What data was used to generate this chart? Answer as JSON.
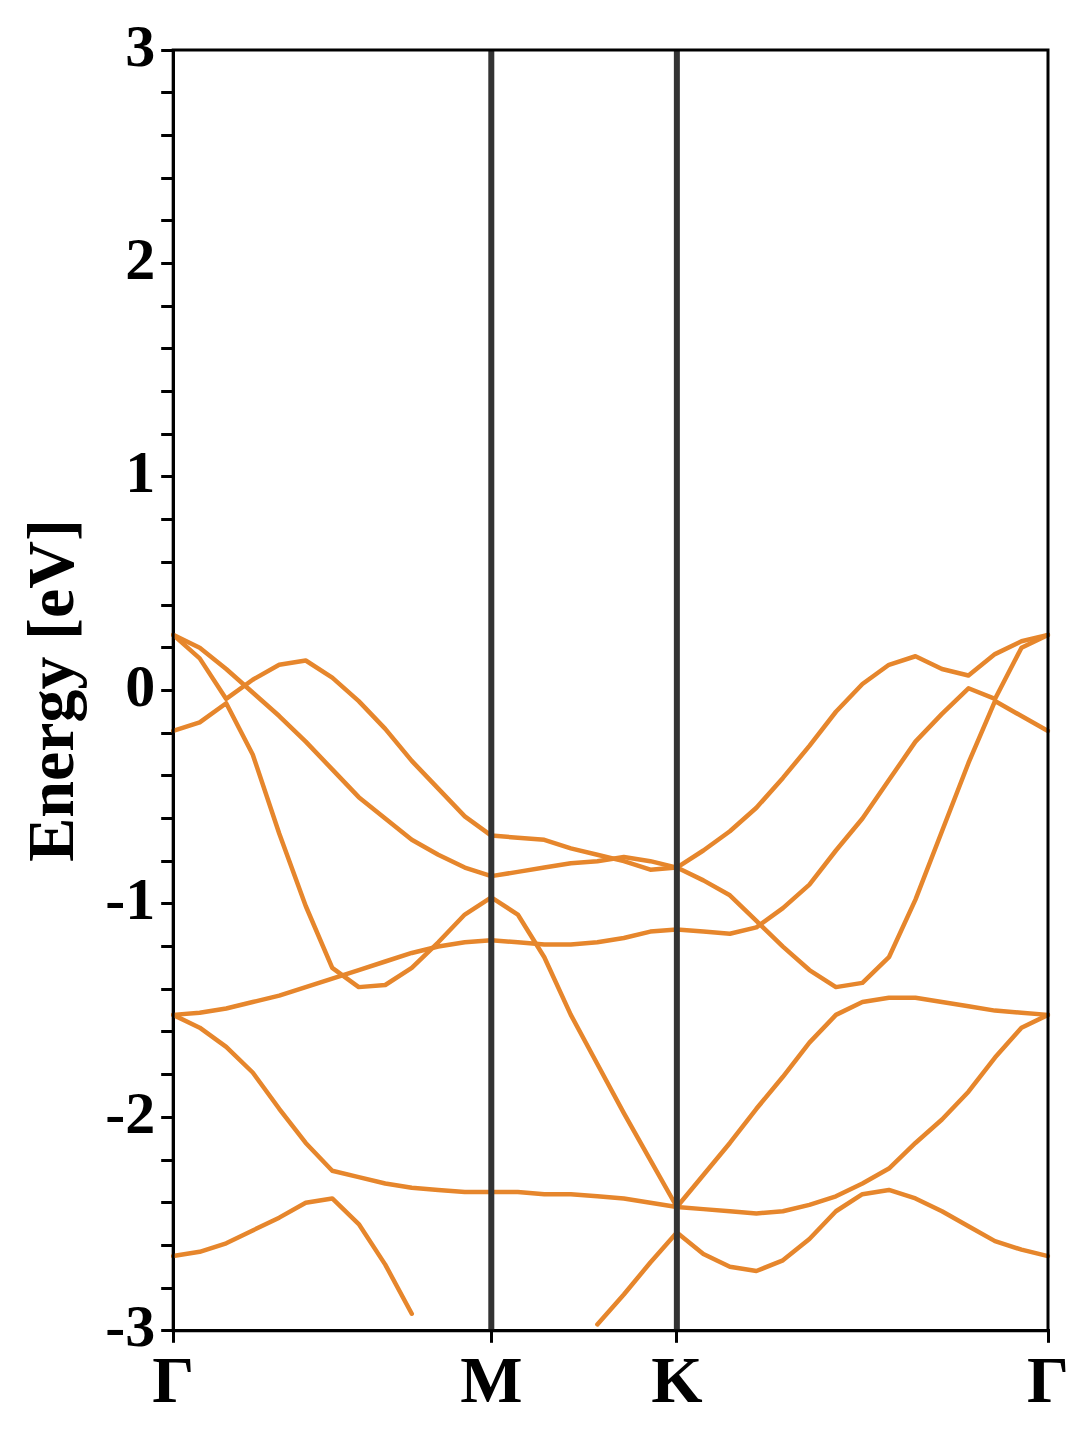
{
  "chart_data": {
    "type": "line",
    "ylabel": "Energy [eV]",
    "categories": [
      "Γ",
      null,
      null,
      null,
      null,
      null,
      null,
      null,
      null,
      null,
      null,
      null,
      "M",
      null,
      null,
      null,
      null,
      null,
      null,
      "K",
      null,
      null,
      null,
      null,
      null,
      null,
      null,
      null,
      null,
      null,
      null,
      null,
      null,
      "Γ"
    ],
    "ylim": [
      -3,
      3
    ],
    "yticks": [
      -3,
      {
        "value": -2.8,
        "label": null
      },
      {
        "value": -2.6,
        "label": null
      },
      {
        "value": -2.4,
        "label": null
      },
      {
        "value": -2.2,
        "label": null
      },
      -2,
      {
        "value": -1.8,
        "label": null
      },
      {
        "value": -1.6,
        "label": null
      },
      {
        "value": -1.4,
        "label": null
      },
      {
        "value": -1.2,
        "label": null
      },
      -1,
      {
        "value": -0.8,
        "label": null
      },
      {
        "value": -0.6,
        "label": null
      },
      {
        "value": -0.4,
        "label": null
      },
      {
        "value": -0.2,
        "label": null
      },
      0,
      {
        "value": 0.2,
        "label": null
      },
      {
        "value": 0.4,
        "label": null
      },
      {
        "value": 0.6,
        "label": null
      },
      {
        "value": 0.8,
        "label": null
      },
      1,
      {
        "value": 1.2,
        "label": null
      },
      {
        "value": 1.4,
        "label": null
      },
      {
        "value": 1.6,
        "label": null
      },
      {
        "value": 1.8,
        "label": null
      },
      2,
      {
        "value": 2.2,
        "label": null
      },
      {
        "value": 2.4,
        "label": null
      },
      {
        "value": 2.6,
        "label": null
      },
      {
        "value": 2.8,
        "label": null
      },
      3
    ],
    "grid": false,
    "legend": false,
    "marker": "none",
    "line_style": "solid",
    "ref_lines": [
      {
        "axis": "x",
        "value": "M",
        "color": "#333333"
      },
      {
        "axis": "x",
        "value": "K",
        "color": "#333333"
      }
    ],
    "series": [
      {
        "color": "#e6862c",
        "values": [
          0.26,
          0.15,
          -0.04,
          0.05,
          0.12,
          0.14,
          0.06,
          -0.05,
          -0.18,
          -0.33,
          -0.46,
          -0.59,
          -0.68,
          -0.69,
          -0.7,
          -0.74,
          -0.77,
          -0.8,
          -0.84,
          -0.83,
          -0.75,
          -0.66,
          -0.55,
          -0.41,
          -0.26,
          -0.1,
          0.03,
          0.12,
          0.16,
          0.1,
          0.07,
          0.17,
          0.23,
          0.26
        ]
      },
      {
        "color": "#e6862c",
        "values": [
          0.26,
          0.2,
          0.1,
          -0.01,
          -0.12,
          -0.24,
          -0.37,
          -0.5,
          -0.6,
          -0.7,
          -0.77,
          -0.83,
          -0.87,
          -0.85,
          -0.83,
          -0.81,
          -0.8,
          -0.78,
          -0.8,
          -0.83,
          -0.89,
          -0.96,
          -1.08,
          -1.2,
          -1.31,
          -1.39,
          -1.37,
          -1.25,
          -0.98,
          -0.66,
          -0.34,
          -0.05,
          -0.12,
          -0.19
        ]
      },
      {
        "color": "#e6862c",
        "values": [
          -0.19,
          -0.15,
          -0.06,
          -0.3,
          -0.67,
          -1.01,
          -1.3,
          -1.39,
          -1.38,
          -1.3,
          -1.18,
          -1.05,
          -0.97,
          -1.05,
          -1.25,
          -1.52,
          -1.75,
          -1.98,
          -2.2,
          -2.42,
          -2.27,
          -2.12,
          -1.96,
          -1.81,
          -1.65,
          -1.52,
          -1.46,
          -1.44,
          -1.44,
          -1.46,
          -1.48,
          -1.5,
          -1.51,
          -1.52
        ]
      },
      {
        "color": "#e6862c",
        "values": [
          -1.52,
          -1.51,
          -1.49,
          -1.46,
          -1.43,
          -1.39,
          -1.35,
          -1.31,
          -1.27,
          -1.23,
          -1.2,
          -1.18,
          -1.17,
          -1.18,
          -1.19,
          -1.19,
          -1.18,
          -1.16,
          -1.13,
          -1.12,
          -1.13,
          -1.14,
          -1.11,
          -1.02,
          -0.91,
          -0.75,
          -0.6,
          -0.42,
          -0.24,
          -0.11,
          0.01,
          -0.04,
          0.2,
          0.26
        ]
      },
      {
        "color": "#e6862c",
        "values": [
          -1.52,
          -1.58,
          -1.67,
          -1.79,
          -1.96,
          -2.12,
          -2.25,
          -2.28,
          -2.31,
          -2.33,
          -2.34,
          -2.35,
          -2.35,
          -2.35,
          -2.36,
          -2.36,
          -2.37,
          -2.38,
          -2.4,
          -2.42,
          -2.43,
          -2.44,
          -2.45,
          -2.44,
          -2.41,
          -2.37,
          -2.31,
          -2.24,
          -2.12,
          -2.01,
          -1.88,
          -1.72,
          -1.58,
          -1.52
        ]
      },
      {
        "color": "#e6862c",
        "values": [
          -2.65,
          -2.63,
          -2.59,
          -2.53,
          -2.47,
          -2.4,
          -2.38,
          -2.5,
          -2.69,
          -2.92,
          null,
          null,
          null,
          null,
          null,
          null,
          -2.97,
          -2.83,
          -2.68,
          -2.54,
          -2.64,
          -2.7,
          -2.72,
          -2.67,
          -2.57,
          -2.44,
          -2.36,
          -2.34,
          -2.38,
          -2.44,
          -2.51,
          -2.58,
          -2.62,
          -2.65
        ]
      }
    ]
  }
}
